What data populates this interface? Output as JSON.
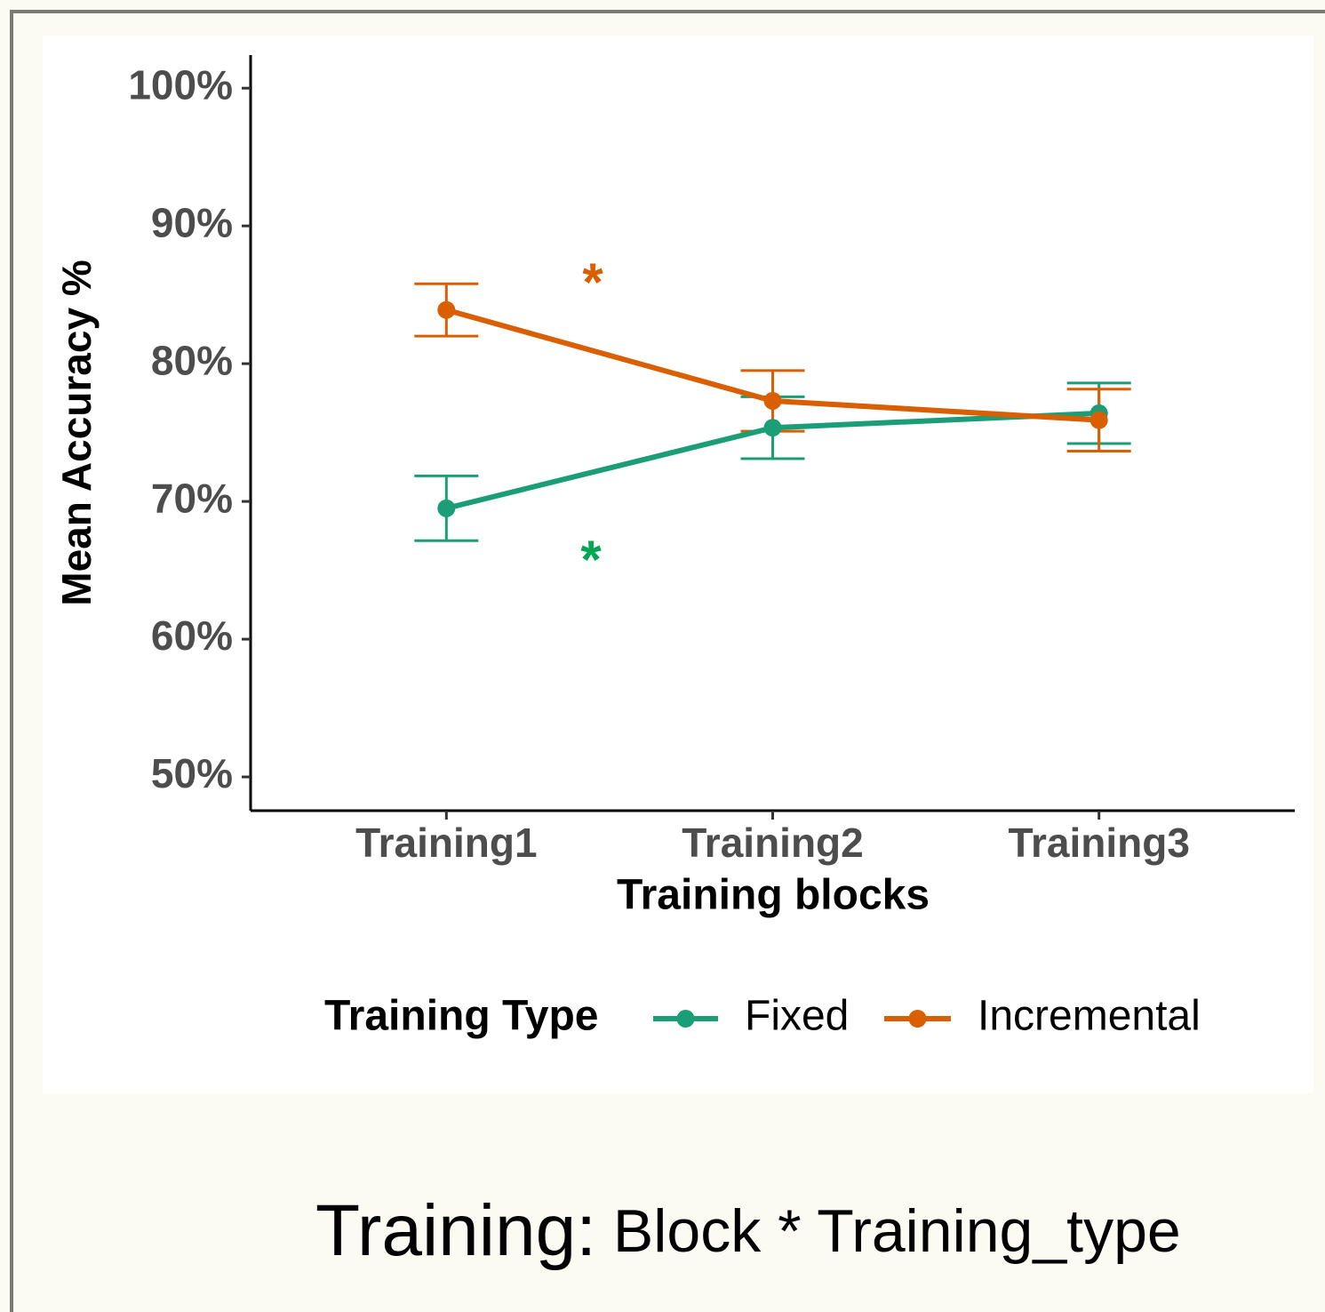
{
  "chart_data": {
    "type": "line",
    "x_label": "Training blocks",
    "y_label": "Mean Accuracy %",
    "categories": [
      "Training1",
      "Training2",
      "Training3"
    ],
    "series": [
      {
        "name": "Fixed",
        "color": "#1b9e77",
        "values": [
          69.5,
          75.35,
          76.4
        ],
        "errors": [
          2.35,
          2.25,
          2.2
        ]
      },
      {
        "name": "Incremental",
        "color": "#d95f02",
        "values": [
          83.9,
          77.3,
          75.9
        ],
        "errors": [
          1.9,
          2.2,
          2.25
        ]
      }
    ],
    "ylim": [
      47.55,
      102.4
    ],
    "yticks": [
      {
        "value": 50,
        "label": "50%"
      },
      {
        "value": 60,
        "label": "60%"
      },
      {
        "value": 70,
        "label": "70%"
      },
      {
        "value": 80,
        "label": "80%"
      },
      {
        "value": 90,
        "label": "90%"
      },
      {
        "value": 100,
        "label": "100%"
      }
    ],
    "legend_title": "Training Type",
    "legend": "bottom",
    "annotations": [
      {
        "text": "*",
        "color": "#d95f02"
      },
      {
        "text": "*",
        "color": "#00a651"
      }
    ],
    "caption": {
      "lead": "Training:",
      "rest": "Block * Training_type"
    }
  }
}
